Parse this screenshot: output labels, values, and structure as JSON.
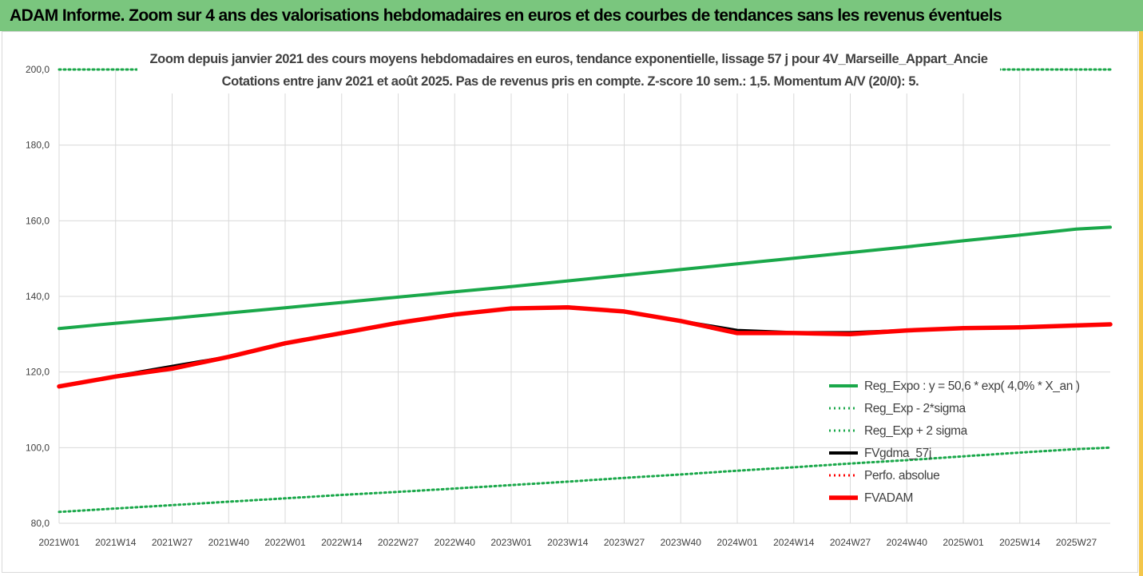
{
  "header": {
    "banner": "ADAM Informe. Zoom sur 4 ans des valorisations hebdomadaires en euros et des courbes de tendances sans les revenus éventuels"
  },
  "colors": {
    "banner_bg": "#7ac67e",
    "green": "#1aa84a",
    "black": "#000000",
    "red": "#ff0000",
    "grid": "#d9d9d9",
    "text": "#404040"
  },
  "chart_data": {
    "type": "line",
    "title": "Zoom depuis janvier 2021 des cours moyens hebdomadaires en euros, tendance exponentielle, lissage 57 j pour 4V_Marseille_Appart_Ancie",
    "subtitle": "Cotations entre janv 2021 et août 2025.  Pas de revenus pris en compte. Z-score 10 sem.: 1,5. Momentum A/V (20/0): 5.",
    "xlabel": "",
    "ylabel": "",
    "ylim": [
      80,
      200
    ],
    "yticks": [
      "80,0",
      "100,0",
      "120,0",
      "140,0",
      "160,0",
      "180,0",
      "200,0"
    ],
    "grid": true,
    "legend_position": "bottom-right",
    "x_ticks": [
      "2021W01",
      "2021W14",
      "2021W27",
      "2021W40",
      "2022W01",
      "2022W14",
      "2022W27",
      "2022W40",
      "2023W01",
      "2023W14",
      "2023W27",
      "2023W40",
      "2024W01",
      "2024W14",
      "2024W27",
      "2024W40",
      "2025W01",
      "2025W14",
      "2025W27"
    ],
    "x": [
      "2021W01",
      "2021W14",
      "2021W27",
      "2021W40",
      "2022W01",
      "2022W14",
      "2022W27",
      "2022W40",
      "2023W01",
      "2023W14",
      "2023W27",
      "2023W40",
      "2024W01",
      "2024W14",
      "2024W27",
      "2024W40",
      "2025W01",
      "2025W14",
      "2025W27",
      "2025W35"
    ],
    "series": [
      {
        "name": "Reg_Expo : y = 50,6 * exp( 4,0% *  X_an )",
        "style": "solid",
        "color": "#1aa84a",
        "values": [
          131.5,
          132.9,
          134.2,
          135.6,
          137.0,
          138.4,
          139.8,
          141.2,
          142.6,
          144.1,
          145.6,
          147.1,
          148.6,
          150.1,
          151.6,
          153.1,
          154.7,
          156.2,
          157.8,
          158.3
        ]
      },
      {
        "name": "Reg_Exp - 2*sigma",
        "style": "dotted",
        "color": "#1aa84a",
        "values": [
          83.0,
          83.9,
          84.8,
          85.7,
          86.6,
          87.5,
          88.3,
          89.2,
          90.1,
          91.0,
          92.0,
          92.9,
          93.9,
          94.8,
          95.8,
          96.7,
          97.7,
          98.7,
          99.6,
          100.0
        ]
      },
      {
        "name": "Reg_Exp + 2 sigma",
        "style": "dotted",
        "color": "#1aa84a",
        "values": [
          200.0,
          200.0,
          200.0,
          200.0,
          200.0,
          200.0,
          200.0,
          200.0,
          200.0,
          200.0,
          200.0,
          200.0,
          200.0,
          200.0,
          200.0,
          200.0,
          200.0,
          200.0,
          200.0,
          200.0
        ]
      },
      {
        "name": "FVgdma_57j",
        "style": "solid",
        "color": "#000000",
        "values": [
          116.2,
          118.9,
          121.5,
          124.0,
          127.6,
          130.3,
          133.0,
          135.2,
          136.8,
          137.2,
          136.0,
          133.5,
          131.0,
          130.4,
          130.4,
          131.0,
          131.6,
          131.8,
          132.3,
          132.6
        ]
      },
      {
        "name": "Perfo. absolue",
        "style": "dotted",
        "color": "#ff0000",
        "values": [
          116.2,
          118.8,
          120.9,
          124.0,
          127.6,
          130.3,
          133.0,
          135.2,
          136.8,
          137.1,
          136.0,
          133.5,
          130.3,
          130.3,
          130.0,
          131.0,
          131.6,
          131.8,
          132.3,
          132.6
        ]
      },
      {
        "name": "FVADAM",
        "style": "solid-thick",
        "color": "#ff0000",
        "values": [
          116.2,
          118.8,
          120.9,
          124.0,
          127.6,
          130.3,
          133.0,
          135.2,
          136.8,
          137.1,
          136.0,
          133.5,
          130.3,
          130.3,
          130.0,
          131.0,
          131.6,
          131.8,
          132.3,
          132.6
        ]
      }
    ]
  }
}
